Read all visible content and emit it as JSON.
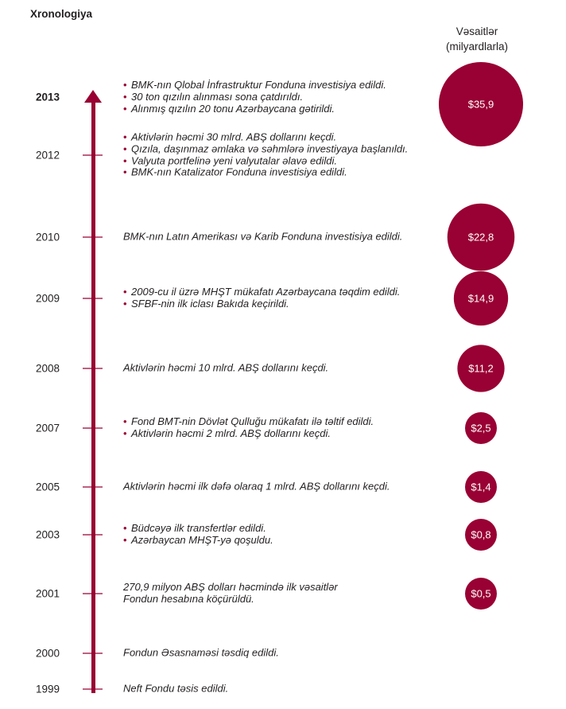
{
  "title": "Xronologiya",
  "funds_header": [
    "Vəsaitlər",
    "(milyardlarla)"
  ],
  "colors": {
    "accent": "#990033",
    "text": "#231f20"
  },
  "timeline": [
    {
      "year": "2013",
      "bold": true,
      "bulleted": true,
      "events": [
        "BMK-nın Qlobal İnfrastruktur Fonduna investisiya edildi.",
        "30 ton qızılın alınması sona çatdırıldı.",
        "Alınmış qızılın 20 tonu Azərbaycana gətirildi."
      ]
    },
    {
      "year": "2012",
      "bold": false,
      "bulleted": true,
      "events": [
        "Aktivlərin həcmi 30 mlrd. ABŞ dollarını keçdi.",
        "Qızıla, daşınmaz əmlaka və səhmlərə investiyaya başlanıldı.",
        "Valyuta portfelinə yeni valyutalar əlavə edildi.",
        "BMK-nın Katalizator Fonduna investisiya edildi."
      ]
    },
    {
      "year": "2010",
      "bold": false,
      "bulleted": false,
      "events": [
        "BMK-nın Latın Amerikası və Karib Fonduna investisiya edildi."
      ]
    },
    {
      "year": "2009",
      "bold": false,
      "bulleted": true,
      "events": [
        "2009-cu il üzrə  MHŞT mükafatı Azərbaycana təqdim edildi.",
        "SFBF-nin ilk iclası Bakıda keçirildi."
      ]
    },
    {
      "year": "2008",
      "bold": false,
      "bulleted": false,
      "events": [
        "Aktivlərin həcmi 10 mlrd. ABŞ dollarını keçdi."
      ]
    },
    {
      "year": "2007",
      "bold": false,
      "bulleted": true,
      "events": [
        "Fond BMT-nin Dövlət Qulluğu mükafatı ilə təltif edildi.",
        "Aktivlərin həcmi 2 mlrd. ABŞ dollarını keçdi."
      ]
    },
    {
      "year": "2005",
      "bold": false,
      "bulleted": false,
      "events": [
        "Aktivlərin həcmi ilk dəfə olaraq 1 mlrd. ABŞ dollarını keçdi."
      ]
    },
    {
      "year": "2003",
      "bold": false,
      "bulleted": true,
      "events": [
        "Büdcəyə ilk transfertlər edildi.",
        "Azərbaycan MHŞT-yə qoşuldu."
      ]
    },
    {
      "year": "2001",
      "bold": false,
      "bulleted": false,
      "events": [
        "270,9 milyon ABŞ dolları həcmində ilk vəsaitlər",
        "Fondun  hesabına köçürüldü."
      ]
    },
    {
      "year": "2000",
      "bold": false,
      "bulleted": false,
      "events": [
        "Fondun Əsasnaməsi təsdiq edildi."
      ]
    },
    {
      "year": "1999",
      "bold": false,
      "bulleted": false,
      "events": [
        "Neft Fondu təsis edildi."
      ]
    }
  ],
  "chart_data": {
    "type": "bubble",
    "title": "Vəsaitlər (milyardlarla)",
    "x": [
      "2013",
      "2010",
      "2009",
      "2008",
      "2007",
      "2005",
      "2003",
      "2001"
    ],
    "values": [
      35.9,
      22.8,
      14.9,
      11.2,
      2.5,
      1.4,
      0.8,
      0.5
    ],
    "labels": [
      "$35,9",
      "$22,8",
      "$14,9",
      "$11,2",
      "$2,5",
      "$1,4",
      "$0,8",
      "$0,5"
    ],
    "color": "#990033"
  }
}
